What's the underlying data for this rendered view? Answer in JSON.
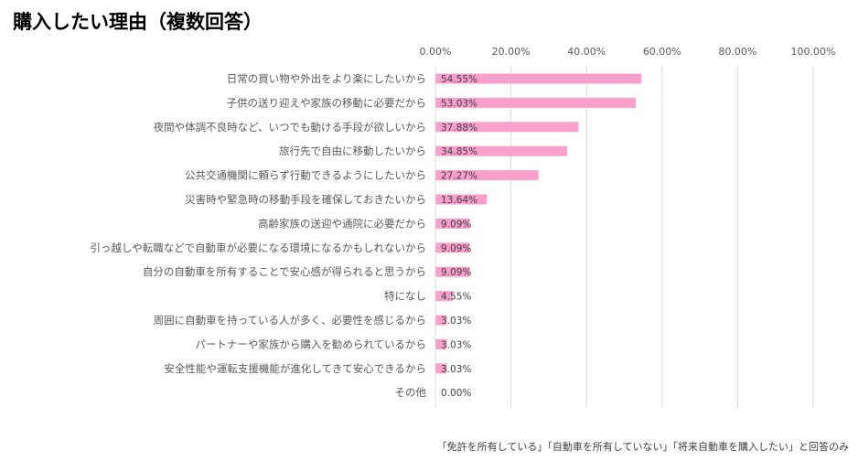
{
  "title": "購入したい理由（複数回答）",
  "note": "「免許を所有している」「自動車を所有していない」「将来自動車を購入したい」と回答のみ",
  "colors": {
    "bar": "#f99fcb",
    "grid": "#d9d9d9",
    "label": "#595959",
    "value": "#404040"
  },
  "chart_data": {
    "type": "bar",
    "orientation": "horizontal",
    "title": "購入したい理由（複数回答）",
    "xlim": [
      0,
      100
    ],
    "x_ticks": [
      0,
      20,
      40,
      60,
      80,
      100
    ],
    "x_tick_labels": [
      "0.00%",
      "20.00%",
      "40.00%",
      "60.00%",
      "80.00%",
      "100.00%"
    ],
    "grid": true,
    "categories": [
      "日常の買い物や外出をより楽にしたいから",
      "子供の送り迎えや家族の移動に必要だから",
      "夜間や体調不良時など、いつでも動ける手段が欲しいから",
      "旅行先で自由に移動したいから",
      "公共交通機関に頼らず行動できるようにしたいから",
      "災害時や緊急時の移動手段を確保しておきたいから",
      "高齢家族の送迎や通院に必要だから",
      "引っ越しや転職などで自動車が必要になる環境になるかもしれないから",
      "自分の自動車を所有することで安心感が得られると思うから",
      "特になし",
      "周囲に自動車を持っている人が多く、必要性を感じるから",
      "パートナーや家族から購入を勧められているから",
      "安全性能や運転支援機能が進化してきて安心できるから",
      "その他"
    ],
    "values": [
      54.55,
      53.03,
      37.88,
      34.85,
      27.27,
      13.64,
      9.09,
      9.09,
      9.09,
      4.55,
      3.03,
      3.03,
      3.03,
      0.0
    ],
    "value_labels": [
      "54.55%",
      "53.03%",
      "37.88%",
      "34.85%",
      "27.27%",
      "13.64%",
      "9.09%",
      "9.09%",
      "9.09%",
      "4.55%",
      "3.03%",
      "3.03%",
      "3.03%",
      "0.00%"
    ]
  }
}
